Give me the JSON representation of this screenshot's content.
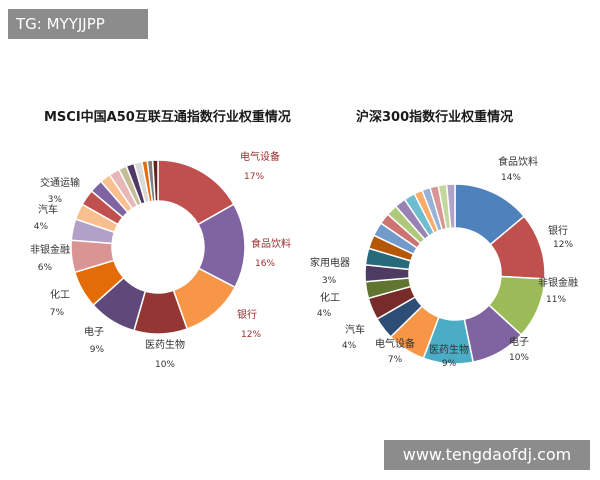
{
  "overlay": {
    "tg_label": "TG: MYYJJPP",
    "site_label": "www.tengdaofdj.com"
  },
  "chart_data": [
    {
      "type": "pie",
      "variant": "donut",
      "title": "MSCI中国A50互联互通指数行业权重情况",
      "unit": "%",
      "categories": [
        "电气设备",
        "食品饮料",
        "银行",
        "医药生物",
        "电子",
        "化工",
        "非银金融",
        "汽车",
        "交通运输",
        "",
        "",
        "",
        "",
        "",
        "",
        "",
        "",
        "",
        ""
      ],
      "values": [
        17,
        16,
        12,
        10,
        9,
        7,
        6,
        4,
        3,
        3,
        2.5,
        2,
        2,
        1.5,
        1.5,
        1.5,
        1,
        1,
        1
      ],
      "colors": [
        "#c0504d",
        "#8064a2",
        "#f79646",
        "#943634",
        "#5f497a",
        "#e36c09",
        "#d99594",
        "#b2a1c7",
        "#fabf8f",
        "#c0504d",
        "#8064a2",
        "#fac08f",
        "#e6b9b8",
        "#c4bd97",
        "#4f3a66",
        "#d9d9d9",
        "#e46c0a",
        "#7f7f7f",
        "#632523"
      ],
      "highlight_labels": [
        "电气设备",
        "食品饮料",
        "银行"
      ],
      "highlight_color": "#9b2d30"
    },
    {
      "type": "pie",
      "variant": "donut",
      "title": "沪深300指数行业权重情况",
      "unit": "%",
      "categories": [
        "食品饮料",
        "银行",
        "非银金融",
        "电子",
        "医药生物",
        "电气设备",
        "汽车",
        "化工",
        "家用电器",
        "",
        "",
        "",
        "",
        "",
        "",
        "",
        "",
        "",
        "",
        "",
        "",
        ""
      ],
      "values": [
        14,
        12,
        11,
        10,
        9,
        7,
        4,
        4,
        3,
        3,
        3,
        2.5,
        2.5,
        2,
        2,
        2,
        2,
        1.5,
        1.5,
        1.5,
        1.5,
        1.5
      ],
      "colors": [
        "#4f81bd",
        "#c0504d",
        "#9bbb59",
        "#8064a2",
        "#4bacc6",
        "#f79646",
        "#2c4d75",
        "#772c2a",
        "#5f7530",
        "#4d3b62",
        "#276a7c",
        "#b65708",
        "#729aca",
        "#cd7371",
        "#afc97a",
        "#9983b5",
        "#6fbdd1",
        "#f9ab6b",
        "#95b3d7",
        "#d99694",
        "#c3d69b",
        "#b3a2c7"
      ],
      "highlight_labels": [],
      "highlight_color": "#333333"
    }
  ]
}
